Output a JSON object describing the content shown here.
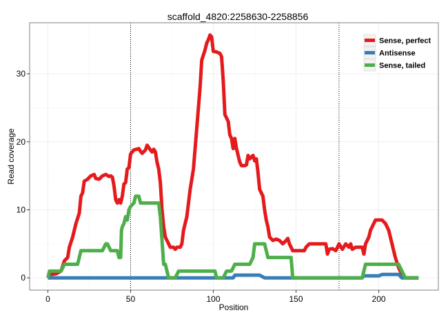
{
  "chart_data": {
    "type": "line",
    "title": "scaffold_4820:2258630-2258856",
    "xlabel": "Position",
    "ylabel": "Read coverage",
    "xlim": [
      -11,
      236
    ],
    "ylim": [
      -1.8,
      37.5
    ],
    "x_ticks": [
      0,
      50,
      100,
      150,
      200
    ],
    "y_ticks": [
      0,
      10,
      20,
      30
    ],
    "grid": true,
    "legend_position": "top-right",
    "vlines": [
      50,
      176
    ],
    "series": [
      {
        "name": "Sense, perfect",
        "color": "#e41a1c",
        "points": [
          [
            0,
            0.5
          ],
          [
            2,
            0.5
          ],
          [
            5,
            0.6
          ],
          [
            8,
            1
          ],
          [
            10,
            2.5
          ],
          [
            12,
            3
          ],
          [
            13,
            4.5
          ],
          [
            15,
            6
          ],
          [
            17,
            8
          ],
          [
            19,
            9.5
          ],
          [
            20,
            12
          ],
          [
            21,
            12.5
          ],
          [
            22,
            14.2
          ],
          [
            24,
            14.5
          ],
          [
            26,
            15
          ],
          [
            28,
            15.2
          ],
          [
            29,
            14.6
          ],
          [
            31,
            14.5
          ],
          [
            33,
            15
          ],
          [
            35,
            15.2
          ],
          [
            37,
            14.9
          ],
          [
            38,
            15
          ],
          [
            39,
            14.8
          ],
          [
            40,
            13.5
          ],
          [
            41,
            11.5
          ],
          [
            42,
            11
          ],
          [
            43,
            11.5
          ],
          [
            44,
            11
          ],
          [
            45,
            12
          ],
          [
            46,
            13.8
          ],
          [
            47,
            14
          ],
          [
            48,
            16
          ],
          [
            49,
            16.2
          ],
          [
            50,
            18.2
          ],
          [
            51,
            18.5
          ],
          [
            52,
            18.8
          ],
          [
            55,
            19
          ],
          [
            56,
            18.6
          ],
          [
            57,
            18.3
          ],
          [
            59,
            18.8
          ],
          [
            60,
            19.5
          ],
          [
            62,
            18.8
          ],
          [
            63,
            18.5
          ],
          [
            64,
            18.9
          ],
          [
            65,
            18.5
          ],
          [
            66,
            17
          ],
          [
            67,
            16
          ],
          [
            68,
            14
          ],
          [
            69,
            10
          ],
          [
            70,
            7.5
          ],
          [
            71,
            6
          ],
          [
            72,
            5.5
          ],
          [
            74,
            4.5
          ],
          [
            76,
            4.5
          ],
          [
            77,
            4.2
          ],
          [
            78,
            4.5
          ],
          [
            80,
            4.5
          ],
          [
            81,
            5
          ],
          [
            82,
            7
          ],
          [
            84,
            9
          ],
          [
            86,
            13
          ],
          [
            88,
            16
          ],
          [
            90,
            22
          ],
          [
            92,
            28
          ],
          [
            93,
            32
          ],
          [
            95,
            33.5
          ],
          [
            96,
            34.5
          ],
          [
            97,
            35
          ],
          [
            98,
            35.7
          ],
          [
            99,
            35.4
          ],
          [
            100,
            33.3
          ],
          [
            102,
            33.2
          ],
          [
            104,
            33
          ],
          [
            105,
            32.5
          ],
          [
            106,
            29
          ],
          [
            107,
            24
          ],
          [
            108,
            23.5
          ],
          [
            109,
            23
          ],
          [
            110,
            21
          ],
          [
            111,
            20.5
          ],
          [
            112,
            19
          ],
          [
            113,
            20.5
          ],
          [
            114,
            19
          ],
          [
            116,
            17
          ],
          [
            117,
            16.5
          ],
          [
            119,
            16.5
          ],
          [
            120,
            16.6
          ],
          [
            121,
            18
          ],
          [
            122,
            17.5
          ],
          [
            124,
            18
          ],
          [
            125,
            17.2
          ],
          [
            126,
            17.5
          ],
          [
            127,
            15.5
          ],
          [
            128,
            13
          ],
          [
            130,
            12
          ],
          [
            131,
            10
          ],
          [
            132,
            8.5
          ],
          [
            133,
            7.5
          ],
          [
            134,
            6
          ],
          [
            136,
            5.5
          ],
          [
            138,
            5.7
          ],
          [
            140,
            5.5
          ],
          [
            142,
            5
          ],
          [
            144,
            5.5
          ],
          [
            145,
            5.8
          ],
          [
            146,
            5
          ],
          [
            148,
            4
          ],
          [
            150,
            4
          ],
          [
            152,
            4
          ],
          [
            154,
            4
          ],
          [
            155,
            4
          ],
          [
            156,
            4.5
          ],
          [
            158,
            5
          ],
          [
            160,
            5
          ],
          [
            162,
            5
          ],
          [
            165,
            5
          ],
          [
            168,
            5
          ],
          [
            169,
            3.5
          ],
          [
            170,
            4.2
          ],
          [
            172,
            4.3
          ],
          [
            174,
            4
          ],
          [
            175,
            4.5
          ],
          [
            176,
            5
          ],
          [
            178,
            4.2
          ],
          [
            180,
            5
          ],
          [
            182,
            4.5
          ],
          [
            183,
            5
          ],
          [
            184,
            4.2
          ],
          [
            186,
            4.5
          ],
          [
            188,
            4.5
          ],
          [
            190,
            4.5
          ],
          [
            191,
            3.5
          ],
          [
            192,
            5
          ],
          [
            194,
            6
          ],
          [
            195,
            7
          ],
          [
            196,
            7.5
          ],
          [
            198,
            8.5
          ],
          [
            202,
            8.5
          ],
          [
            204,
            8
          ],
          [
            206,
            7
          ],
          [
            208,
            5
          ],
          [
            210,
            3
          ],
          [
            212,
            1.5
          ],
          [
            214,
            0.5
          ],
          [
            216,
            0
          ],
          [
            218,
            0
          ],
          [
            220,
            0
          ],
          [
            222,
            0
          ],
          [
            224,
            0
          ]
        ]
      },
      {
        "name": "Antisense",
        "color": "#377eb8",
        "points": [
          [
            0,
            0
          ],
          [
            112,
            0
          ],
          [
            113,
            0.4
          ],
          [
            128,
            0.4
          ],
          [
            131,
            0
          ],
          [
            190,
            0
          ],
          [
            191,
            0.3
          ],
          [
            200,
            0.3
          ],
          [
            202,
            0.5
          ],
          [
            210,
            0.5
          ],
          [
            212,
            0.5
          ],
          [
            214,
            0
          ],
          [
            224,
            0
          ]
        ]
      },
      {
        "name": "Sense, tailed",
        "color": "#4daf4a",
        "points": [
          [
            0,
            0
          ],
          [
            1,
            1
          ],
          [
            8,
            1
          ],
          [
            10,
            2
          ],
          [
            18,
            2
          ],
          [
            20,
            4
          ],
          [
            33,
            4
          ],
          [
            35,
            5
          ],
          [
            36,
            5
          ],
          [
            38,
            4
          ],
          [
            42,
            4
          ],
          [
            43,
            3
          ],
          [
            44,
            3
          ],
          [
            44.5,
            7
          ],
          [
            45,
            7.5
          ],
          [
            46,
            8
          ],
          [
            47,
            9
          ],
          [
            48,
            8.5
          ],
          [
            49,
            10
          ],
          [
            50,
            10.5
          ],
          [
            52,
            11
          ],
          [
            53,
            12
          ],
          [
            55,
            12
          ],
          [
            56,
            11
          ],
          [
            67,
            11
          ],
          [
            68,
            9
          ],
          [
            70,
            2
          ],
          [
            71,
            2
          ],
          [
            72,
            1
          ],
          [
            73,
            0
          ],
          [
            77,
            0
          ],
          [
            79,
            1
          ],
          [
            101,
            1
          ],
          [
            102,
            0
          ],
          [
            106,
            0
          ],
          [
            108,
            1
          ],
          [
            111,
            1
          ],
          [
            113,
            2
          ],
          [
            122,
            2
          ],
          [
            124,
            3
          ],
          [
            125,
            5
          ],
          [
            131,
            5
          ],
          [
            132,
            4
          ],
          [
            133,
            3
          ],
          [
            137,
            3
          ],
          [
            147,
            3
          ],
          [
            148,
            0
          ],
          [
            190,
            0
          ],
          [
            192,
            2
          ],
          [
            212,
            2
          ],
          [
            214,
            1
          ],
          [
            216,
            0
          ],
          [
            224,
            0
          ]
        ]
      }
    ]
  }
}
